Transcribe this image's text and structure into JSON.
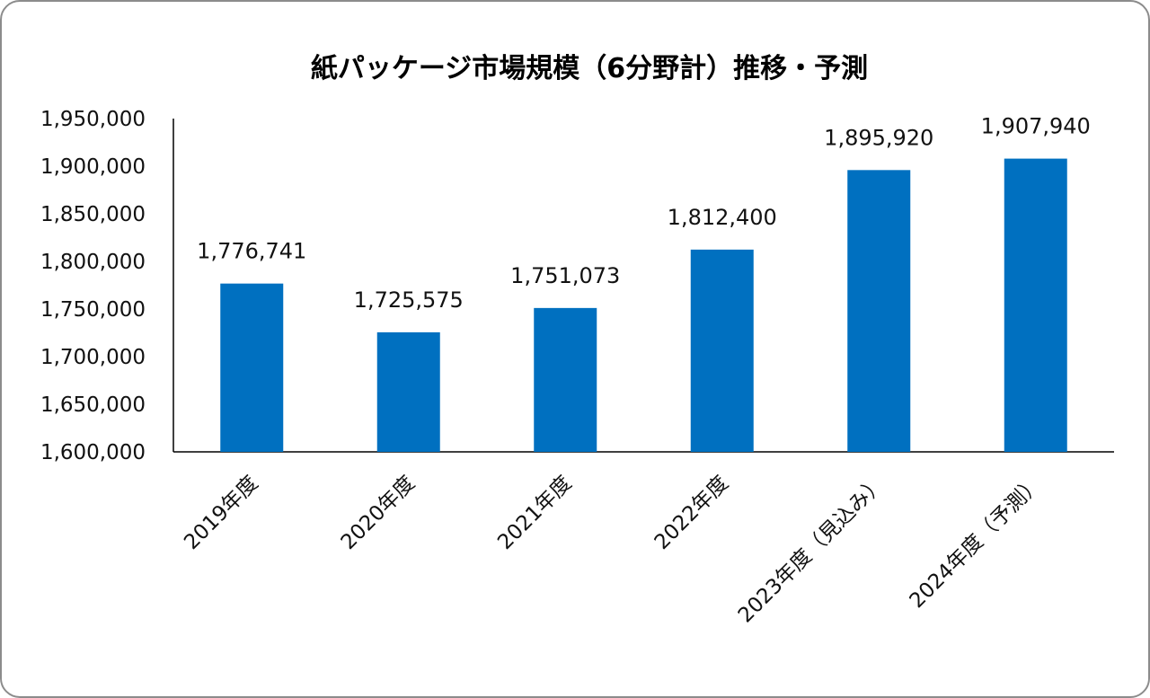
{
  "chart_data": {
    "type": "bar",
    "title": "紙パッケージ市場規模（6分野計）推移・予測",
    "xlabel": "",
    "ylabel": "",
    "categories": [
      "2019年度",
      "2020年度",
      "2021年度",
      "2022年度",
      "2023年度（見込み）",
      "2024年度（予測）"
    ],
    "values": [
      1776741,
      1725575,
      1751073,
      1812400,
      1895920,
      1907940
    ],
    "data_labels": [
      "1,776,741",
      "1,725,575",
      "1,751,073",
      "1,812,400",
      "1,895,920",
      "1,907,940"
    ],
    "ylim": [
      1600000,
      1950000
    ],
    "yticks": [
      1600000,
      1650000,
      1700000,
      1750000,
      1800000,
      1850000,
      1900000,
      1950000
    ],
    "ytick_labels": [
      "1,600,000",
      "1,650,000",
      "1,700,000",
      "1,750,000",
      "1,800,000",
      "1,850,000",
      "1,900,000",
      "1,950,000"
    ],
    "bar_color": "#0070c0",
    "grid": false,
    "legend": "none"
  }
}
